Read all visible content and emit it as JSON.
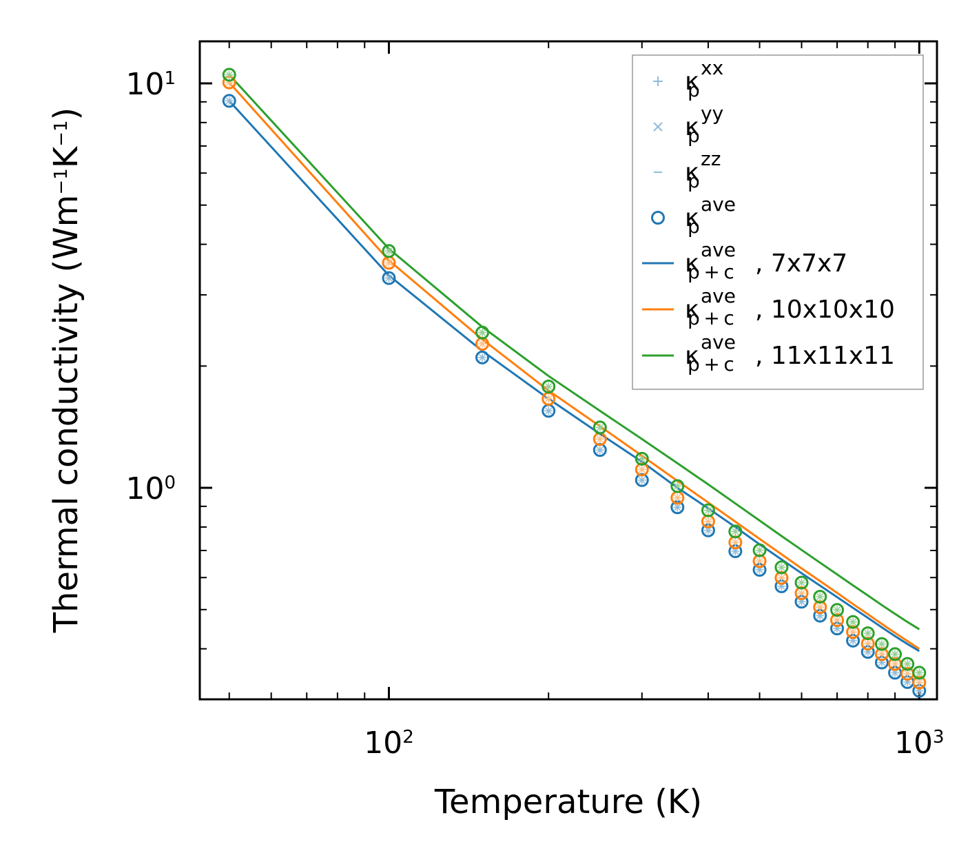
{
  "chart_data": {
    "type": "line",
    "xlabel": "Temperature (K)",
    "ylabel": "Thermal conductivity (Wm⁻¹K⁻¹)",
    "xscale": "log",
    "yscale": "log",
    "xlim": [
      44,
      1080
    ],
    "ylim": [
      0.3,
      12.7
    ],
    "x_ticks": [
      {
        "value": 100,
        "base": "10",
        "exp": "2"
      },
      {
        "value": 1000,
        "base": "10",
        "exp": "3"
      }
    ],
    "y_ticks": [
      {
        "value": 1,
        "base": "10",
        "exp": "0"
      },
      {
        "value": 10,
        "base": "10",
        "exp": "1"
      }
    ],
    "x": [
      50,
      100,
      150,
      200,
      250,
      300,
      350,
      400,
      450,
      500,
      550,
      600,
      650,
      700,
      750,
      800,
      850,
      900,
      950,
      1000
    ],
    "series": [
      {
        "name": "7x7x7",
        "color": "#1f77b4",
        "scatter_label": "κ_p^ave (7x7x7)",
        "kp_ave": [
          9.05,
          3.3,
          2.1,
          1.55,
          1.24,
          1.045,
          0.895,
          0.785,
          0.697,
          0.627,
          0.571,
          0.523,
          0.483,
          0.449,
          0.419,
          0.393,
          0.37,
          0.349,
          0.331,
          0.315
        ],
        "kpc_ave": [
          9.05,
          3.35,
          2.18,
          1.66,
          1.36,
          1.16,
          1.0,
          0.89,
          0.8,
          0.725,
          0.665,
          0.615,
          0.573,
          0.537,
          0.505,
          0.477,
          0.452,
          0.43,
          0.411,
          0.395
        ]
      },
      {
        "name": "10x10x10",
        "color": "#ff7f0e",
        "scatter_label": "κ_p^ave (10x10x10)",
        "kp_ave": [
          10.05,
          3.6,
          2.27,
          1.66,
          1.32,
          1.11,
          0.945,
          0.826,
          0.733,
          0.659,
          0.599,
          0.549,
          0.507,
          0.471,
          0.44,
          0.412,
          0.388,
          0.367,
          0.347,
          0.33
        ],
        "kpc_ave": [
          10.05,
          3.65,
          2.33,
          1.74,
          1.42,
          1.2,
          1.04,
          0.92,
          0.825,
          0.748,
          0.685,
          0.632,
          0.588,
          0.55,
          0.516,
          0.487,
          0.461,
          0.438,
          0.418,
          0.4
        ]
      },
      {
        "name": "11x11x11",
        "color": "#2ca02c",
        "scatter_label": "κ_p^ave (11x11x11)",
        "kp_ave": [
          10.5,
          3.85,
          2.42,
          1.78,
          1.41,
          1.18,
          1.01,
          0.88,
          0.78,
          0.701,
          0.636,
          0.583,
          0.538,
          0.499,
          0.466,
          0.437,
          0.411,
          0.388,
          0.367,
          0.349
        ],
        "kpc_ave": [
          10.5,
          3.9,
          2.5,
          1.89,
          1.55,
          1.32,
          1.15,
          1.02,
          0.915,
          0.83,
          0.76,
          0.702,
          0.653,
          0.611,
          0.574,
          0.542,
          0.513,
          0.488,
          0.466,
          0.447
        ]
      }
    ],
    "legend": {
      "position": "upper right",
      "entries": [
        {
          "base": "κ",
          "sup": "xx",
          "sub": "p",
          "suffix": "",
          "marker": "plus",
          "color": "#1f77b4"
        },
        {
          "base": "κ",
          "sup": "yy",
          "sub": "p",
          "suffix": "",
          "marker": "x",
          "color": "#1f77b4"
        },
        {
          "base": "κ",
          "sup": "zz",
          "sub": "p",
          "suffix": "",
          "marker": "hline",
          "color": "#1f77b4"
        },
        {
          "base": "κ",
          "sup": "ave",
          "sub": "p",
          "suffix": "",
          "marker": "circle",
          "color": "#1f77b4"
        },
        {
          "base": "κ",
          "sup": "ave",
          "sub": "p + c",
          "suffix": ", 7x7x7",
          "marker": "line",
          "color": "#1f77b4"
        },
        {
          "base": "κ",
          "sup": "ave",
          "sub": "p + c",
          "suffix": ", 10x10x10",
          "marker": "line",
          "color": "#ff7f0e"
        },
        {
          "base": "κ",
          "sup": "ave",
          "sub": "p + c",
          "suffix": ", 11x11x11",
          "marker": "line",
          "color": "#2ca02c"
        }
      ]
    },
    "grid": false
  }
}
